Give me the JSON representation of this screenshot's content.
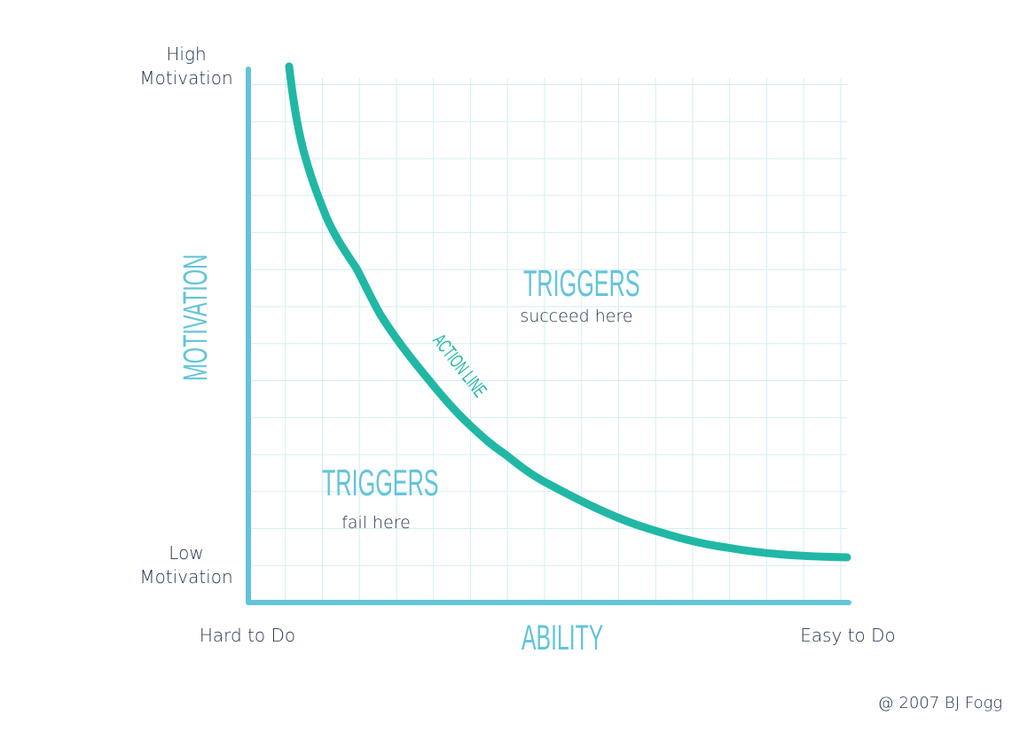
{
  "y_axis": {
    "label": "MOTIVATION",
    "top_label": [
      "High",
      "Motivation"
    ],
    "bottom_label": [
      "Low",
      "Motivation"
    ]
  },
  "x_axis": {
    "label": "ABILITY",
    "left_label": "Hard to Do",
    "right_label": "Easy to Do"
  },
  "curve_label": "ACTION LINE",
  "regions": {
    "above": {
      "title": "TRIGGERS",
      "subtitle": "succeed here"
    },
    "below": {
      "title": "TRIGGERS",
      "subtitle": "fail here"
    }
  },
  "copyright": "@ 2007 BJ Fogg",
  "colors": {
    "axis": "#63c4d9",
    "curve": "#20b8a5",
    "grid": "#d3eef5",
    "text": "#22344f"
  }
}
